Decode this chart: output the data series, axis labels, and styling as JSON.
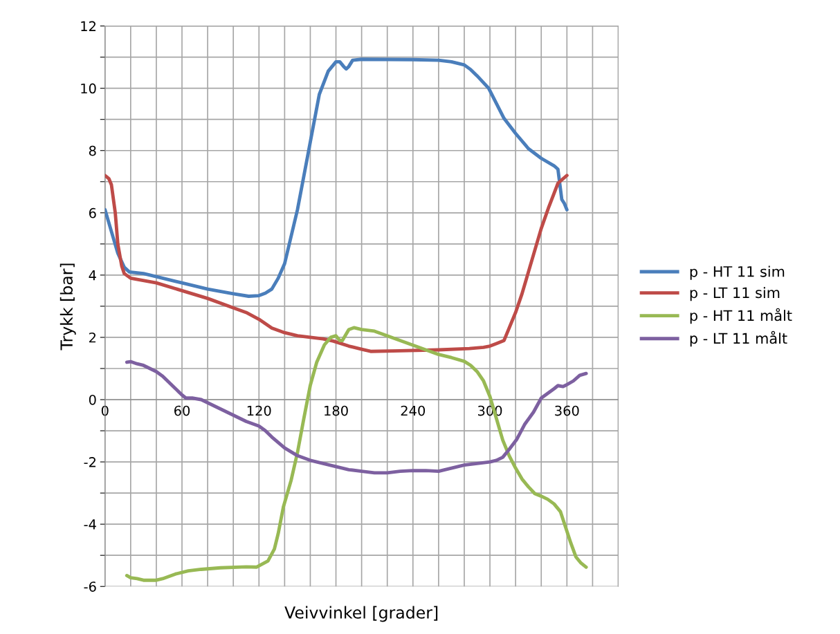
{
  "chart_data": {
    "type": "line",
    "xlabel": "Veivvinkel [grader]",
    "ylabel": "Trykk [bar]",
    "xlim": [
      0,
      400
    ],
    "ylim": [
      -6,
      12
    ],
    "xticks": [
      0,
      {
        "value": 20,
        "label": null
      },
      {
        "value": 40,
        "label": null
      },
      60,
      {
        "value": 80,
        "label": null
      },
      {
        "value": 100,
        "label": null
      },
      120,
      {
        "value": 140,
        "label": null
      },
      {
        "value": 160,
        "label": null
      },
      180,
      {
        "value": 200,
        "label": null
      },
      {
        "value": 220,
        "label": null
      },
      240,
      {
        "value": 260,
        "label": null
      },
      {
        "value": 280,
        "label": null
      },
      300,
      {
        "value": 320,
        "label": null
      },
      {
        "value": 340,
        "label": null
      },
      360,
      {
        "value": 380,
        "label": null
      },
      {
        "value": 400,
        "label": null
      }
    ],
    "yticks": [
      -6,
      {
        "value": -5,
        "label": null
      },
      -4,
      {
        "value": -3,
        "label": null
      },
      -2,
      {
        "value": -1,
        "label": null
      },
      0,
      {
        "value": 1,
        "label": null
      },
      2,
      {
        "value": 3,
        "label": null
      },
      4,
      {
        "value": 5,
        "label": null
      },
      6,
      {
        "value": 7,
        "label": null
      },
      8,
      {
        "value": 9,
        "label": null
      },
      10,
      {
        "value": 11,
        "label": null
      },
      12
    ],
    "grid": true,
    "legend": "right",
    "marker": "none",
    "line_style": "solid",
    "series": [
      {
        "name": "p - HT 11 sim",
        "color": "#4a7ebb",
        "x": [
          0,
          5,
          10,
          15,
          19,
          30,
          40,
          60,
          80,
          100,
          112,
          120,
          125,
          130,
          135,
          140,
          150,
          158,
          167,
          174,
          180,
          183,
          186,
          188,
          190,
          193,
          200,
          240,
          260,
          270,
          280,
          285,
          290,
          299,
          311,
          320,
          330,
          340,
          350,
          353,
          356,
          358,
          360
        ],
        "values": [
          6.1,
          5.4,
          4.7,
          4.25,
          4.1,
          4.05,
          3.95,
          3.75,
          3.55,
          3.4,
          3.32,
          3.34,
          3.42,
          3.55,
          3.9,
          4.37,
          6.1,
          7.84,
          9.8,
          10.55,
          10.85,
          10.85,
          10.7,
          10.62,
          10.7,
          10.9,
          10.93,
          10.92,
          10.9,
          10.85,
          10.75,
          10.6,
          10.4,
          10.0,
          9.03,
          8.55,
          8.06,
          7.75,
          7.51,
          7.4,
          6.43,
          6.3,
          6.1
        ]
      },
      {
        "name": "p - LT 11 sim",
        "color": "#be4b48",
        "x": [
          0,
          3,
          5,
          8,
          10,
          13,
          15,
          20,
          40,
          60,
          80,
          100,
          110,
          120,
          130,
          140,
          150,
          170,
          178,
          190,
          200,
          207,
          230,
          260,
          284,
          295,
          300,
          305,
          311,
          315,
          320,
          325,
          330,
          335,
          340,
          346,
          353,
          360
        ],
        "values": [
          7.2,
          7.1,
          6.9,
          6.0,
          5.0,
          4.3,
          4.05,
          3.9,
          3.75,
          3.5,
          3.25,
          2.95,
          2.8,
          2.58,
          2.3,
          2.15,
          2.05,
          1.95,
          1.88,
          1.72,
          1.62,
          1.55,
          1.57,
          1.6,
          1.64,
          1.68,
          1.72,
          1.8,
          1.9,
          2.3,
          2.8,
          3.4,
          4.1,
          4.8,
          5.5,
          6.2,
          6.95,
          7.2
        ]
      },
      {
        "name": "p - HT 11 målt",
        "color": "#98b954",
        "x": [
          17,
          20,
          25,
          30,
          40,
          45,
          55,
          65,
          75,
          90,
          110,
          118,
          127,
          132,
          135,
          139,
          145,
          150,
          155,
          160,
          165,
          171,
          176,
          180,
          183,
          185,
          190,
          194,
          200,
          210,
          220,
          230,
          240,
          250,
          260,
          270,
          280,
          285,
          290,
          295,
          300,
          305,
          310,
          315,
          320,
          325,
          330,
          335,
          340,
          345,
          350,
          355,
          359,
          363,
          367,
          371,
          375
        ],
        "values": [
          -5.65,
          -5.72,
          -5.75,
          -5.8,
          -5.8,
          -5.75,
          -5.6,
          -5.5,
          -5.45,
          -5.4,
          -5.37,
          -5.38,
          -5.18,
          -4.8,
          -4.3,
          -3.45,
          -2.6,
          -1.7,
          -0.6,
          0.46,
          1.2,
          1.76,
          2.0,
          2.05,
          1.9,
          1.9,
          2.25,
          2.31,
          2.25,
          2.2,
          2.05,
          1.9,
          1.75,
          1.6,
          1.45,
          1.35,
          1.23,
          1.1,
          0.9,
          0.6,
          0.1,
          -0.6,
          -1.3,
          -1.8,
          -2.2,
          -2.55,
          -2.8,
          -3.02,
          -3.1,
          -3.2,
          -3.35,
          -3.6,
          -4.1,
          -4.6,
          -5.05,
          -5.25,
          -5.38
        ]
      },
      {
        "name": "p - LT 11 målt",
        "color": "#7d60a0",
        "x": [
          17,
          20,
          25,
          30,
          40,
          45,
          50,
          55,
          60,
          63,
          68,
          75,
          80,
          90,
          100,
          110,
          120,
          125,
          130,
          140,
          150,
          160,
          170,
          180,
          190,
          200,
          210,
          220,
          230,
          240,
          250,
          260,
          270,
          280,
          290,
          300,
          305,
          310,
          315,
          321,
          327,
          334,
          340,
          345,
          350,
          353,
          357,
          359,
          365,
          370,
          375
        ],
        "values": [
          1.2,
          1.22,
          1.15,
          1.1,
          0.9,
          0.75,
          0.55,
          0.35,
          0.15,
          0.05,
          0.05,
          0.0,
          -0.1,
          -0.3,
          -0.5,
          -0.7,
          -0.85,
          -1.0,
          -1.2,
          -1.55,
          -1.8,
          -1.95,
          -2.05,
          -2.15,
          -2.25,
          -2.3,
          -2.35,
          -2.35,
          -2.3,
          -2.28,
          -2.28,
          -2.3,
          -2.2,
          -2.1,
          -2.05,
          -2.0,
          -1.95,
          -1.85,
          -1.6,
          -1.27,
          -0.8,
          -0.4,
          0.05,
          0.2,
          0.35,
          0.45,
          0.42,
          0.46,
          0.6,
          0.78,
          0.84
        ]
      }
    ]
  }
}
